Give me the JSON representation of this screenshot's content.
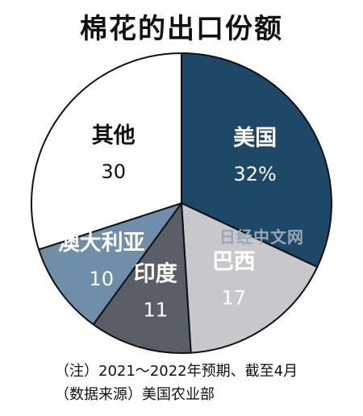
{
  "title": "棉花的出口份额",
  "watermark": "日经中文网",
  "notes": {
    "line1": "（注）2021～2022年预期、截至4月",
    "line2": "（数据来源）美国农业部"
  },
  "chart_data": {
    "type": "pie",
    "title": "棉花的出口份额",
    "start": "12 o'clock",
    "direction": "clockwise",
    "slices": [
      {
        "label": "美国",
        "value": 32,
        "display": "32%",
        "color": "#1e4868",
        "text_color": "#ffffff"
      },
      {
        "label": "巴西",
        "value": 17,
        "display": "17",
        "color": "#c8c8cc",
        "text_color": "#ffffff"
      },
      {
        "label": "印度",
        "value": 11,
        "display": "11",
        "color": "#5a5e66",
        "text_color": "#ffffff"
      },
      {
        "label": "澳大利亚",
        "value": 10,
        "display": "10",
        "color": "#6e8eaa",
        "text_color": "#ffffff"
      },
      {
        "label": "其他",
        "value": 30,
        "display": "30",
        "color": "#ffffff",
        "text_color": "#111111"
      }
    ]
  }
}
